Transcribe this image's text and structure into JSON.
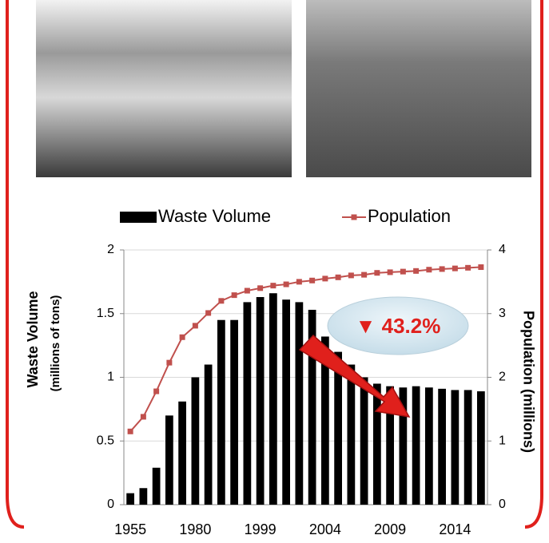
{
  "chart_data": {
    "type": "bar-line",
    "annotation": "▼ 43.2%",
    "y_label": "Waste Volume",
    "y_label_sub": "(millions of tons)",
    "y2_label": "Population (millions)",
    "categories": [
      "1955",
      null,
      null,
      null,
      null,
      "1980",
      null,
      null,
      null,
      null,
      "1999",
      null,
      null,
      null,
      null,
      "2004",
      null,
      null,
      null,
      null,
      "2009",
      null,
      null,
      null,
      null,
      "2014",
      null,
      null
    ],
    "series": [
      {
        "name": "Waste Volume",
        "type": "bar",
        "color": "#000000",
        "values": [
          0.09,
          0.13,
          0.29,
          0.7,
          0.81,
          1.0,
          1.1,
          1.45,
          1.45,
          1.59,
          1.63,
          1.66,
          1.61,
          1.59,
          1.53,
          1.32,
          1.2,
          1.1,
          1.0,
          0.95,
          0.93,
          0.92,
          0.93,
          0.92,
          0.91,
          0.9,
          0.9,
          0.89
        ]
      },
      {
        "name": "Population",
        "type": "line",
        "color": "#c0504d",
        "axis": "y2",
        "values": [
          1.15,
          1.38,
          1.78,
          2.23,
          2.63,
          2.81,
          3.01,
          3.2,
          3.29,
          3.36,
          3.4,
          3.44,
          3.46,
          3.5,
          3.52,
          3.55,
          3.57,
          3.6,
          3.61,
          3.64,
          3.65,
          3.66,
          3.67,
          3.69,
          3.7,
          3.71,
          3.72,
          3.73
        ]
      }
    ],
    "ylim": [
      0,
      2
    ],
    "yticks": [
      0,
      0.5,
      1,
      1.5,
      2
    ],
    "y2lim": [
      0,
      4
    ],
    "y2ticks": [
      0,
      1,
      2,
      3,
      4
    ],
    "grid": true
  }
}
